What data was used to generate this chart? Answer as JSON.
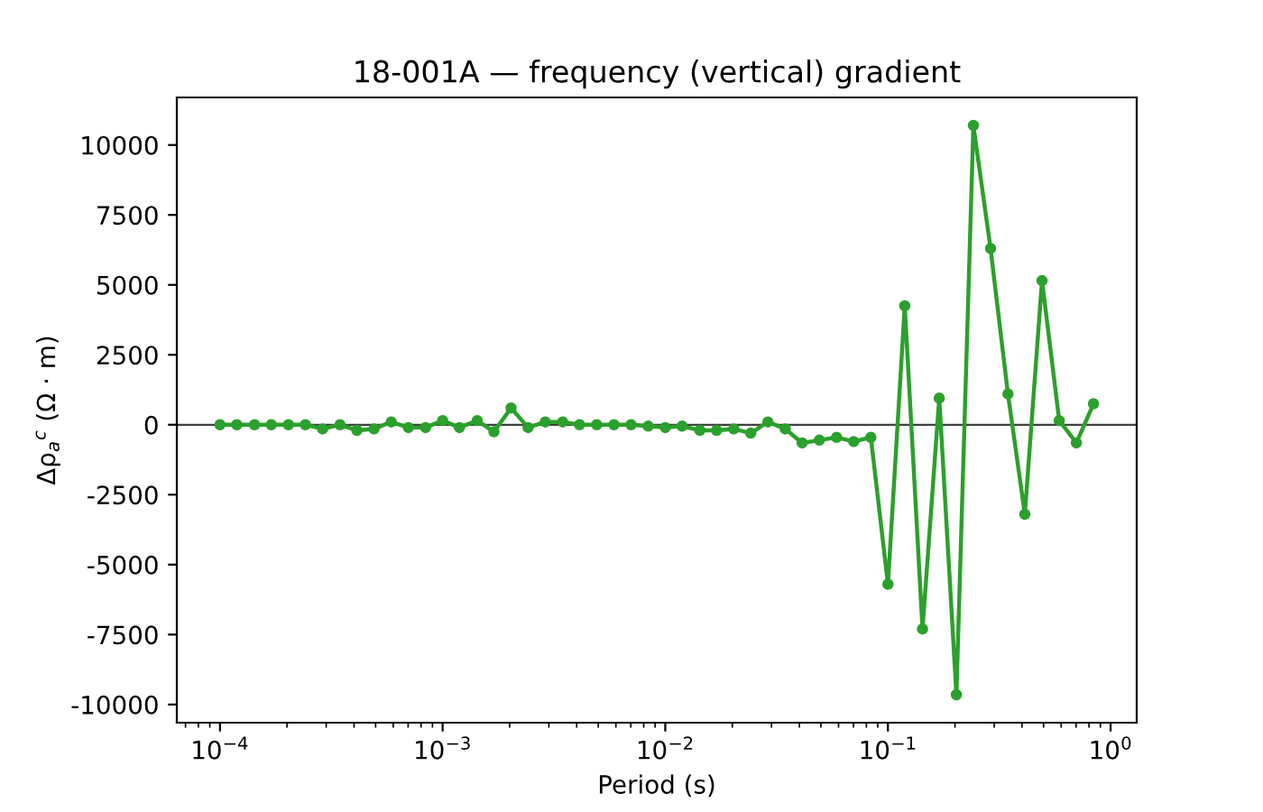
{
  "chart_data": {
    "type": "line",
    "title": "18-001A — frequency (vertical) gradient",
    "xlabel": "Period (s)",
    "ylabel": "Δρ$_{a}$$^{c}$ (Ω · m)",
    "log": "x",
    "marker": "circle",
    "line_style": "solid",
    "grid": false,
    "legend": false,
    "x": [
      0.0001,
      0.000119,
      0.000143,
      0.00017,
      0.000203,
      0.000242,
      0.000289,
      0.000346,
      0.000412,
      0.000492,
      0.000588,
      0.000702,
      0.000838,
      0.001,
      0.00119,
      0.00143,
      0.0017,
      0.00203,
      0.00242,
      0.00289,
      0.00346,
      0.00412,
      0.00492,
      0.00588,
      0.00702,
      0.00838,
      0.01,
      0.0119,
      0.0143,
      0.017,
      0.0203,
      0.0242,
      0.0289,
      0.0346,
      0.0412,
      0.0492,
      0.0588,
      0.0702,
      0.0838,
      0.1,
      0.119,
      0.143,
      0.17,
      0.203,
      0.242,
      0.289,
      0.346,
      0.412,
      0.492,
      0.588,
      0.702,
      0.838
    ],
    "series": [
      {
        "color": "#2ca02c",
        "values": [
          0,
          0,
          0,
          0,
          0,
          0,
          -150,
          0,
          -200,
          -150,
          100,
          -100,
          -100,
          150,
          -100,
          150,
          -250,
          600,
          -100,
          100,
          100,
          0,
          0,
          0,
          0,
          -50,
          -100,
          -50,
          -200,
          -200,
          -150,
          -300,
          100,
          -150,
          -650,
          -550,
          -450,
          -600,
          -450,
          -5700,
          4250,
          -7300,
          950,
          -9650,
          10700,
          6300,
          1100,
          -3200,
          5150,
          150,
          -650,
          750
        ]
      }
    ],
    "xlim": [
      6.4e-05,
      1.31
    ],
    "xticks": [
      {
        "value": 0.0001,
        "label": "10$^{−4}$"
      },
      {
        "value": 0.001,
        "label": "10$^{−3}$"
      },
      {
        "value": 0.01,
        "label": "10$^{−2}$"
      },
      {
        "value": 0.1,
        "label": "10$^{−1}$"
      },
      {
        "value": 1,
        "label": "10$^{0}$"
      }
    ],
    "ylim": [
      -10650,
      11700
    ],
    "yticks": [
      -10000,
      -7500,
      -5000,
      -2500,
      0,
      2500,
      5000,
      7500,
      10000
    ],
    "ref_lines": [
      {
        "axis": "y",
        "value": 0,
        "color": "#404040"
      }
    ]
  }
}
